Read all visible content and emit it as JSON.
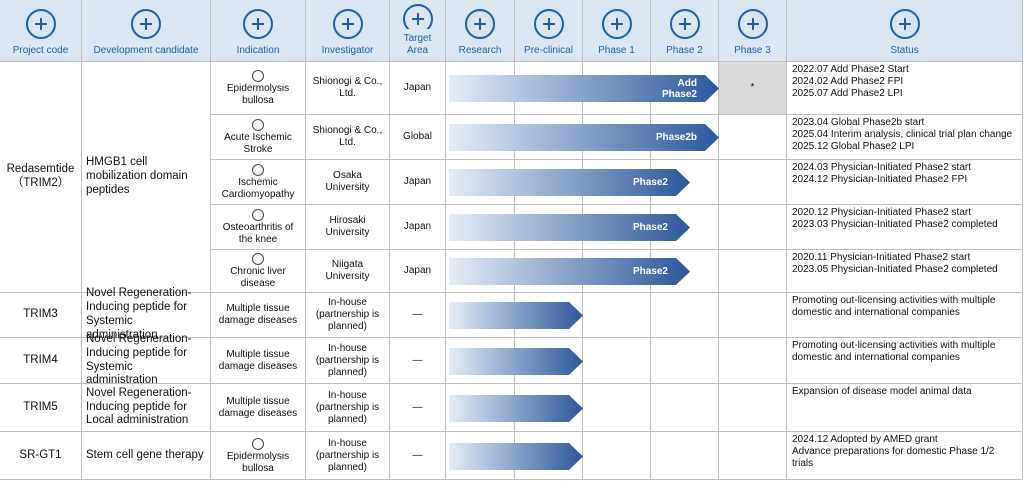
{
  "header": {
    "columns": [
      "Project code",
      "Development candidate",
      "Indication",
      "Investigator",
      "Target Area",
      "Research",
      "Pre-clinical",
      "Phase 1",
      "Phase 2",
      "Phase 3",
      "Status"
    ]
  },
  "groups": [
    {
      "project": "Redasemtide\n（TRIM2）",
      "candidate": "HMGB1 cell mobilization domain peptides",
      "rows": [
        {
          "indication": "Epidermolysis bullosa",
          "investigator": "Shionogi & Co., Ltd.",
          "area": "Japan",
          "stage": "Add\nPhase2",
          "phase3_note": "*",
          "status": [
            "2022.07 Add Phase2 Start",
            "2024.02 Add Phase2 FPI",
            "2025.07 Add Phase2 LPI"
          ]
        },
        {
          "indication": "Acute Ischemic Stroke",
          "investigator": "Shionogi & Co., Ltd.",
          "area": "Global",
          "stage": "Phase2b",
          "status": [
            "2023.04 Global Phase2b start",
            "2025.04 Interim analysis, clinical trial plan change",
            "2025.12 Global Phase2 LPI"
          ]
        },
        {
          "indication": "Ischemic Cardiomyopathy",
          "investigator": "Osaka University",
          "area": "Japan",
          "stage": "Phase2",
          "status": [
            "2024.03 Physician-Initiated Phase2 start",
            "2024.12 Physician-Initiated Phase2  FPI"
          ]
        },
        {
          "indication": "Osteoarthritis of the knee",
          "investigator": "Hirosaki University",
          "area": "Japan",
          "stage": "Phase2",
          "status": [
            "2020.12 Physician-Initiated Phase2  start",
            "2023.03 Physician-Initiated Phase2  completed"
          ]
        },
        {
          "indication": "Chronic liver disease",
          "investigator": "Niigata University",
          "area": "Japan",
          "stage": "Phase2",
          "status": [
            "2020.11 Physician-Initiated Phase2  start",
            "2023.05 Physician-Initiated Phase2  completed"
          ]
        }
      ]
    },
    {
      "project": "TRIM3",
      "candidate": "Novel  Regeneration-Inducing peptide for Systemic administration",
      "rows": [
        {
          "indication": "Multiple tissue damage diseases",
          "investigator": "In-house (partnership is planned)",
          "area": "—",
          "status": [
            "Promoting out-licensing activities with multiple domestic and international companies"
          ]
        }
      ]
    },
    {
      "project": "TRIM4",
      "candidate": "Novel  Regeneration-Inducing peptide for Systemic administration",
      "rows": [
        {
          "indication": "Multiple tissue damage diseases",
          "investigator": "In-house (partnership is planned)",
          "area": "—",
          "status": [
            "Promoting out-licensing activities with multiple domestic and international companies"
          ]
        }
      ]
    },
    {
      "project": "TRIM5",
      "candidate": "Novel  Regeneration-Inducing peptide for Local administration",
      "rows": [
        {
          "indication": "Multiple tissue damage diseases",
          "investigator": "In-house (partnership is planned)",
          "area": "—",
          "status": [
            "Expansion of disease model animal data"
          ]
        }
      ]
    },
    {
      "project": "SR-GT1",
      "candidate": "Stem cell gene therapy",
      "rows": [
        {
          "indication": "Epidermolysis bullosa",
          "investigator": "In-house (partnership is planned)",
          "area": "—",
          "status": [
            "2024.12 Adopted by AMED grant",
            "Advance preparations for domestic Phase 1/2 trials"
          ]
        }
      ]
    }
  ]
}
